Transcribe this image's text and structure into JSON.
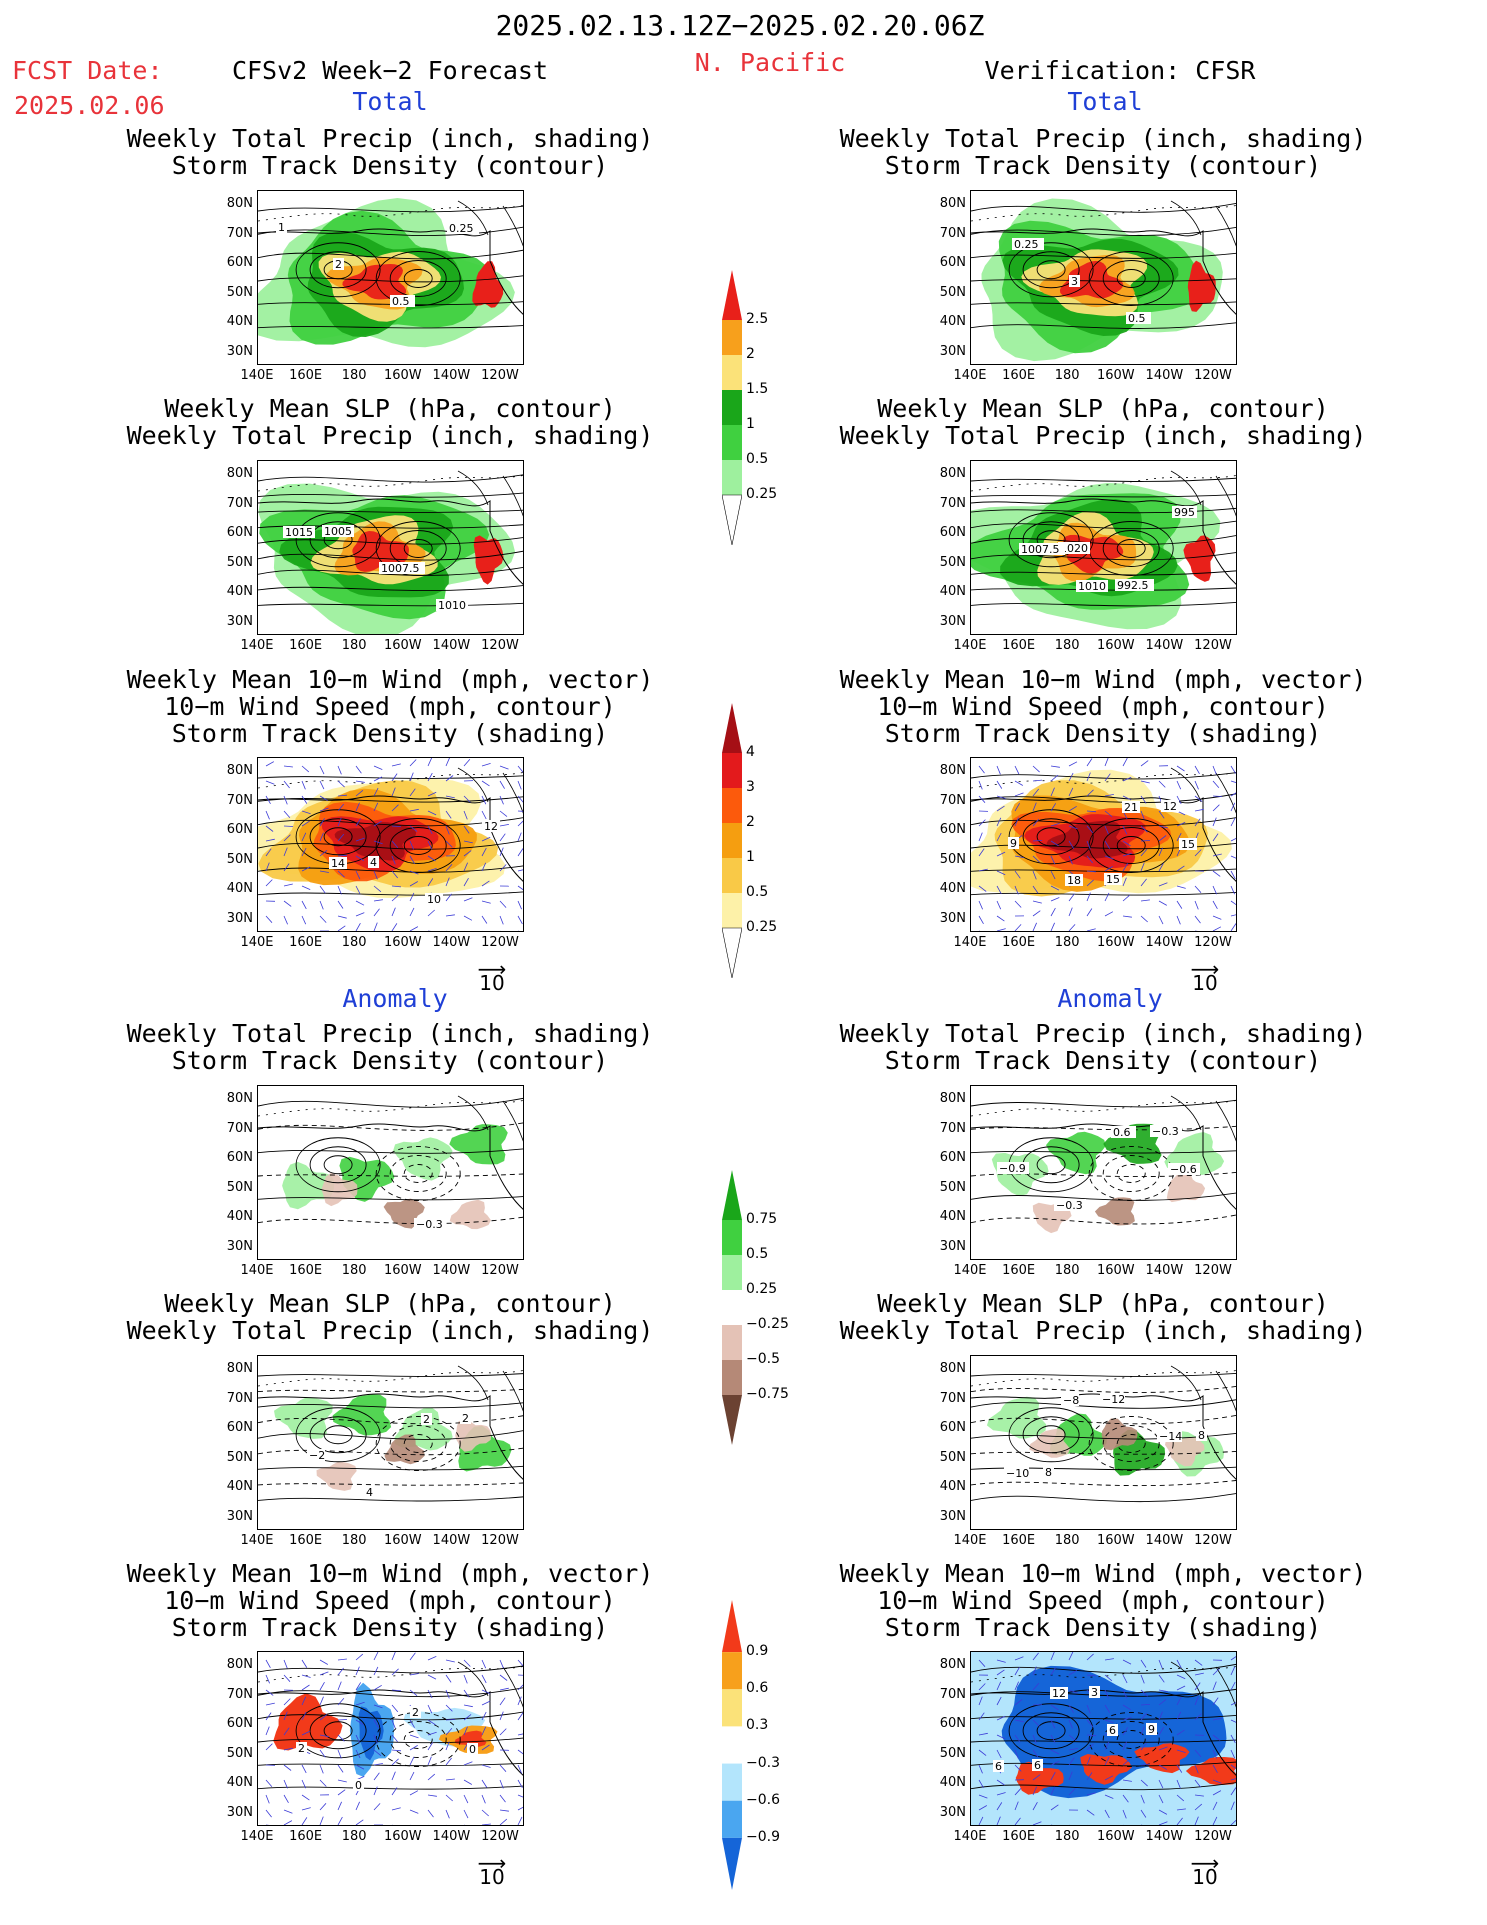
{
  "header": {
    "date_range": "2025.02.13.12Z−2025.02.20.06Z",
    "fcst_label": "FCST Date:",
    "fcst_date": "2025.02.06",
    "model_title": "CFSv2 Week−2 Forecast",
    "region": "N. Pacific",
    "verification": "Verification: CFSR"
  },
  "sections": {
    "total": "Total",
    "anomaly": "Anomaly"
  },
  "panel_titles": {
    "precip_storm": [
      "Weekly Total Precip (inch, shading)",
      "Storm Track Density (contour)"
    ],
    "slp_precip": [
      "Weekly Mean SLP (hPa, contour)",
      "Weekly Total Precip (inch, shading)"
    ],
    "wind_storm": [
      "Weekly Mean 10−m Wind (mph, vector)",
      "10−m Wind Speed (mph, contour)",
      "Storm Track Density (shading)"
    ]
  },
  "axes": {
    "lat_labels": [
      "80N",
      "70N",
      "60N",
      "50N",
      "40N",
      "30N"
    ],
    "lon_labels": [
      "140E",
      "160E",
      "180",
      "160W",
      "140W",
      "120W"
    ]
  },
  "vector_ref": "10",
  "colorbars": [
    {
      "id": "precip_total",
      "labels": [
        "2.5",
        "2",
        "1.5",
        "1",
        "0.5",
        "0.25"
      ],
      "colors": [
        "#e8201a",
        "#f7a01c",
        "#fbe279",
        "#1aa61a",
        "#40d040",
        "#9ef09e",
        "#ffffff"
      ]
    },
    {
      "id": "storm_total",
      "labels": [
        "4",
        "3",
        "2",
        "1",
        "0.5",
        "0.25"
      ],
      "colors": [
        "#a50f15",
        "#e31a1c",
        "#fc5a0c",
        "#f59e10",
        "#f9c947",
        "#fdf1a8",
        "#ffffff"
      ]
    },
    {
      "id": "precip_anom",
      "labels": [
        "0.75",
        "0.5",
        "0.25",
        "−0.25",
        "−0.5",
        "−0.75"
      ],
      "colors": [
        "#1aa61a",
        "#40d040",
        "#9ef09e",
        "#ffffff",
        "#e4c2b6",
        "#b58977",
        "#6b4232"
      ]
    },
    {
      "id": "storm_anom",
      "labels": [
        "0.9",
        "0.6",
        "0.3",
        "−0.3",
        "−0.6",
        "−0.9"
      ],
      "colors": [
        "#f23a1a",
        "#f7a01c",
        "#fbe279",
        "#ffffff",
        "#b3e5fc",
        "#4aa6f0",
        "#1565d8"
      ]
    }
  ],
  "panels": [
    {
      "id": "fc-total-precip",
      "annotations": [
        "1",
        "2",
        "0.5",
        "0.25"
      ]
    },
    {
      "id": "vf-total-precip",
      "annotations": [
        "0.25",
        "3",
        "0.5"
      ]
    },
    {
      "id": "fc-total-slp",
      "annotations": [
        "1005",
        "1007.5",
        "1010",
        "1015"
      ]
    },
    {
      "id": "vf-total-slp",
      "annotations": [
        "1020",
        "992.5",
        "995",
        "1007.5",
        "1010"
      ]
    },
    {
      "id": "fc-total-wind",
      "annotations": [
        "4",
        "10",
        "12",
        "14"
      ]
    },
    {
      "id": "vf-total-wind",
      "annotations": [
        "15",
        "12",
        "9",
        "18",
        "21",
        "15"
      ]
    },
    {
      "id": "fc-anom-precip",
      "annotations": [
        "−0.3"
      ]
    },
    {
      "id": "vf-anom-precip",
      "annotations": [
        "−0.3",
        "−0.9",
        "−0.3",
        "0.6",
        "−0.6"
      ]
    },
    {
      "id": "fc-anom-slp",
      "annotations": [
        "2",
        "−2",
        "4",
        "2"
      ]
    },
    {
      "id": "vf-anom-slp",
      "annotations": [
        "8",
        "8",
        "−12",
        "−14",
        "−10",
        "−8"
      ]
    },
    {
      "id": "fc-anom-wind",
      "annotations": [
        "2",
        "0",
        "2",
        "0"
      ]
    },
    {
      "id": "vf-anom-wind",
      "annotations": [
        "6",
        "3",
        "9",
        "6",
        "12",
        "6"
      ]
    }
  ]
}
